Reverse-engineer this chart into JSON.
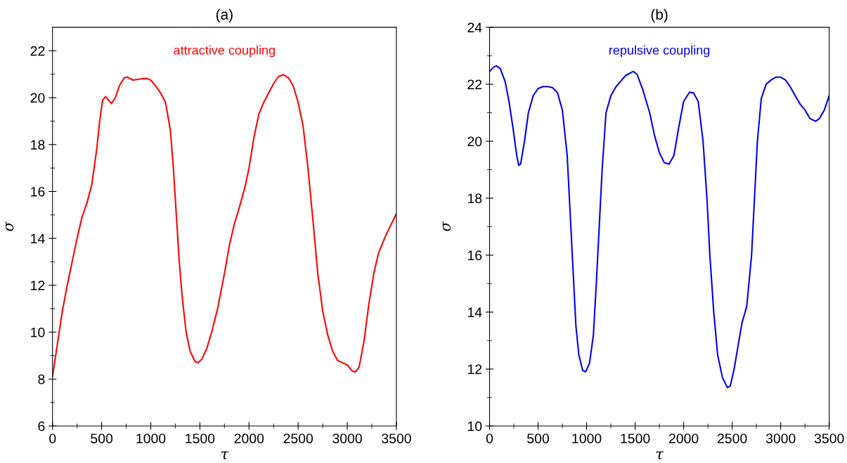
{
  "chart_data": [
    {
      "type": "line",
      "title": "(a)",
      "xlabel": "τ",
      "ylabel": "σ",
      "annotations": [
        "attractive coupling"
      ],
      "xlim": [
        0,
        3500
      ],
      "ylim": [
        6,
        23
      ],
      "xticks": [
        0,
        {
          "value": 250,
          "label": null
        },
        500,
        {
          "value": 750,
          "label": null
        },
        1000,
        {
          "value": 1250,
          "label": null
        },
        1500,
        {
          "value": 1750,
          "label": null
        },
        2000,
        {
          "value": 2250,
          "label": null
        },
        2500,
        {
          "value": 2750,
          "label": null
        },
        3000,
        {
          "value": 3250,
          "label": null
        },
        3500
      ],
      "yticks": [
        6,
        {
          "value": 7,
          "label": null
        },
        8,
        {
          "value": 9,
          "label": null
        },
        10,
        {
          "value": 11,
          "label": null
        },
        12,
        {
          "value": 13,
          "label": null
        },
        14,
        {
          "value": 15,
          "label": null
        },
        16,
        {
          "value": 17,
          "label": null
        },
        18,
        {
          "value": 19,
          "label": null
        },
        20,
        {
          "value": 21,
          "label": null
        },
        22
      ],
      "grid": false,
      "legend": false,
      "series": [
        {
          "color": "#ff0000",
          "x": [
            0,
            50,
            100,
            150,
            200,
            250,
            300,
            350,
            400,
            450,
            480,
            510,
            540,
            570,
            600,
            640,
            680,
            730,
            760,
            820,
            900,
            960,
            1000,
            1050,
            1100,
            1150,
            1200,
            1230,
            1260,
            1290,
            1320,
            1360,
            1400,
            1450,
            1480,
            1520,
            1570,
            1620,
            1680,
            1750,
            1800,
            1850,
            1900,
            1960,
            2000,
            2050,
            2100,
            2150,
            2200,
            2250,
            2300,
            2350,
            2400,
            2450,
            2500,
            2550,
            2600,
            2650,
            2700,
            2750,
            2800,
            2850,
            2900,
            2950,
            3000,
            3050,
            3080,
            3120,
            3170,
            3220,
            3270,
            3320,
            3400,
            3500
          ],
          "values": [
            8.1,
            9.5,
            10.9,
            12,
            13,
            14,
            14.9,
            15.5,
            16.3,
            17.8,
            19,
            19.9,
            20.05,
            19.9,
            19.75,
            20.0,
            20.5,
            20.85,
            20.88,
            20.75,
            20.8,
            20.82,
            20.75,
            20.5,
            20.2,
            19.8,
            18.6,
            17,
            15,
            13,
            11.5,
            10,
            9.2,
            8.75,
            8.7,
            8.85,
            9.3,
            10,
            11,
            12.5,
            13.7,
            14.6,
            15.3,
            16.2,
            17,
            18.3,
            19.3,
            19.8,
            20.2,
            20.6,
            20.9,
            20.98,
            20.85,
            20.5,
            19.8,
            18.8,
            17,
            14.8,
            12.5,
            10.9,
            9.9,
            9.2,
            8.8,
            8.7,
            8.6,
            8.35,
            8.3,
            8.5,
            9.6,
            11.2,
            12.5,
            13.4,
            14.2,
            15.05
          ]
        }
      ]
    },
    {
      "type": "line",
      "title": "(b)",
      "xlabel": "τ",
      "ylabel": "σ",
      "annotations": [
        "repulsive coupling"
      ],
      "xlim": [
        0,
        3500
      ],
      "ylim": [
        10,
        24
      ],
      "xticks": [
        0,
        {
          "value": 250,
          "label": null
        },
        500,
        {
          "value": 750,
          "label": null
        },
        1000,
        {
          "value": 1250,
          "label": null
        },
        1500,
        {
          "value": 1750,
          "label": null
        },
        2000,
        {
          "value": 2250,
          "label": null
        },
        2500,
        {
          "value": 2750,
          "label": null
        },
        3000,
        {
          "value": 3250,
          "label": null
        },
        3500
      ],
      "yticks": [
        10,
        {
          "value": 11,
          "label": null
        },
        12,
        {
          "value": 13,
          "label": null
        },
        14,
        {
          "value": 15,
          "label": null
        },
        16,
        {
          "value": 17,
          "label": null
        },
        18,
        {
          "value": 19,
          "label": null
        },
        20,
        {
          "value": 21,
          "label": null
        },
        22,
        {
          "value": 23,
          "label": null
        },
        24
      ],
      "grid": false,
      "legend": false,
      "series": [
        {
          "color": "#0000ee",
          "x": [
            0,
            40,
            70,
            110,
            160,
            200,
            240,
            280,
            300,
            320,
            360,
            400,
            450,
            500,
            550,
            600,
            650,
            700,
            750,
            800,
            830,
            860,
            890,
            920,
            960,
            990,
            1030,
            1070,
            1100,
            1130,
            1160,
            1200,
            1250,
            1300,
            1350,
            1400,
            1480,
            1520,
            1580,
            1650,
            1700,
            1750,
            1800,
            1850,
            1900,
            1950,
            2000,
            2060,
            2100,
            2150,
            2200,
            2240,
            2270,
            2310,
            2350,
            2400,
            2450,
            2480,
            2520,
            2560,
            2600,
            2650,
            2700,
            2730,
            2760,
            2800,
            2850,
            2900,
            2950,
            3000,
            3050,
            3100,
            3150,
            3200,
            3250,
            3300,
            3360,
            3400,
            3450,
            3500
          ],
          "values": [
            22.45,
            22.6,
            22.65,
            22.55,
            22.1,
            21.4,
            20.5,
            19.5,
            19.15,
            19.2,
            20,
            21,
            21.6,
            21.85,
            21.92,
            21.92,
            21.88,
            21.7,
            21.1,
            19.5,
            17.5,
            15.5,
            13.5,
            12.5,
            11.95,
            11.9,
            12.2,
            13.2,
            15,
            17,
            19,
            21,
            21.6,
            21.9,
            22.1,
            22.3,
            22.45,
            22.35,
            21.8,
            21,
            20.2,
            19.6,
            19.25,
            19.2,
            19.5,
            20.5,
            21.4,
            21.72,
            21.7,
            21.4,
            20,
            18,
            16,
            14,
            12.5,
            11.7,
            11.35,
            11.4,
            12,
            12.8,
            13.6,
            14.2,
            16,
            18,
            20,
            21.5,
            22,
            22.15,
            22.25,
            22.25,
            22.15,
            21.9,
            21.6,
            21.3,
            21.1,
            20.8,
            20.7,
            20.8,
            21.1,
            21.6
          ]
        }
      ]
    }
  ]
}
